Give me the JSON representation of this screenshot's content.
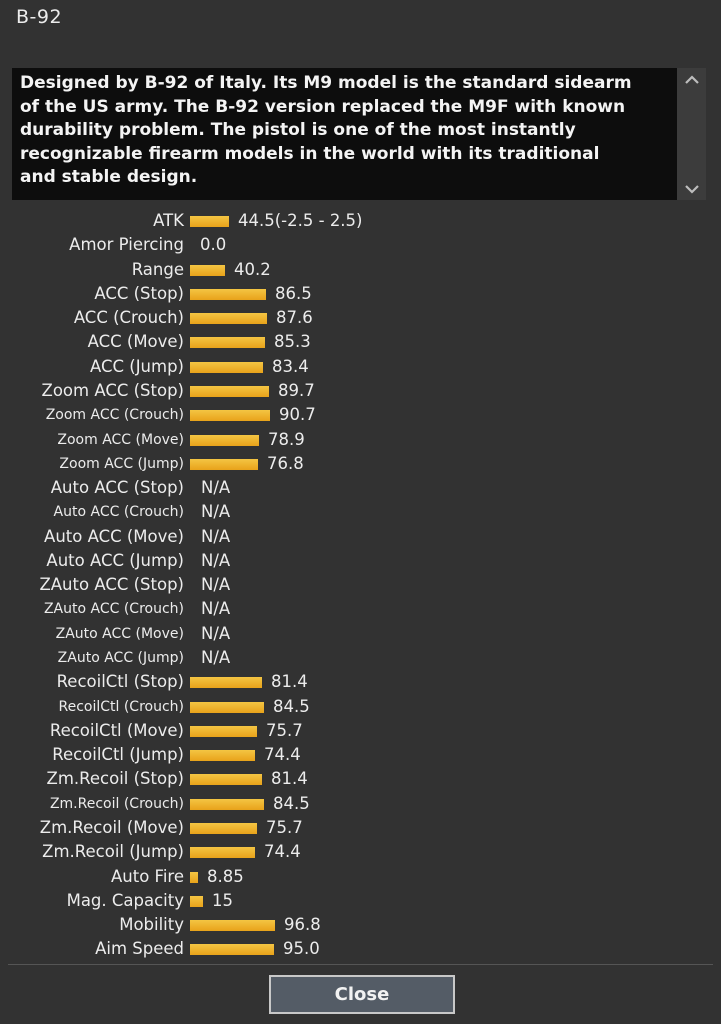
{
  "window": {
    "title": "B-92"
  },
  "description": {
    "lines": [
      "Designed by B-92 of Italy. Its M9 model is the standard sidearm",
      "of the US army. The B-92 version replaced the M9F with known",
      "durability problem. The pistol is one of the most instantly",
      "recognizable firearm models in the world with its traditional",
      "and stable design."
    ]
  },
  "scrollbar": {
    "up_icon": "chevron-up-icon",
    "down_icon": "chevron-down-icon"
  },
  "stats": [
    {
      "label": "ATK",
      "value": "44.5(-2.5 - 2.5)",
      "level": 44.5,
      "size": "big"
    },
    {
      "label": "Amor Piercing",
      "value": "0.0",
      "level": 0,
      "size": "big"
    },
    {
      "label": "Range",
      "value": "40.2",
      "level": 40.2,
      "size": "big"
    },
    {
      "label": "ACC (Stop)",
      "value": "86.5",
      "level": 86.5,
      "size": "big"
    },
    {
      "label": "ACC (Crouch)",
      "value": "87.6",
      "level": 87.6,
      "size": "big"
    },
    {
      "label": "ACC (Move)",
      "value": "85.3",
      "level": 85.3,
      "size": "big"
    },
    {
      "label": "ACC (Jump)",
      "value": "83.4",
      "level": 83.4,
      "size": "big"
    },
    {
      "label": "Zoom ACC (Stop)",
      "value": "89.7",
      "level": 89.7,
      "size": "big"
    },
    {
      "label": "Zoom ACC (Crouch)",
      "value": "90.7",
      "level": 90.7,
      "size": "small"
    },
    {
      "label": "Zoom ACC (Move)",
      "value": "78.9",
      "level": 78.9,
      "size": "small"
    },
    {
      "label": "Zoom ACC (Jump)",
      "value": "76.8",
      "level": 76.8,
      "size": "small"
    },
    {
      "label": "Auto ACC (Stop)",
      "value": "N/A",
      "level": null,
      "size": "big"
    },
    {
      "label": "Auto ACC (Crouch)",
      "value": "N/A",
      "level": null,
      "size": "small"
    },
    {
      "label": "Auto ACC (Move)",
      "value": "N/A",
      "level": null,
      "size": "big"
    },
    {
      "label": "Auto ACC (Jump)",
      "value": "N/A",
      "level": null,
      "size": "big"
    },
    {
      "label": "ZAuto ACC (Stop)",
      "value": "N/A",
      "level": null,
      "size": "big"
    },
    {
      "label": "ZAuto ACC (Crouch)",
      "value": "N/A",
      "level": null,
      "size": "small"
    },
    {
      "label": "ZAuto ACC (Move)",
      "value": "N/A",
      "level": null,
      "size": "small"
    },
    {
      "label": "ZAuto ACC (Jump)",
      "value": "N/A",
      "level": null,
      "size": "small"
    },
    {
      "label": "RecoilCtl (Stop)",
      "value": "81.4",
      "level": 81.4,
      "size": "big"
    },
    {
      "label": "RecoilCtl (Crouch)",
      "value": "84.5",
      "level": 84.5,
      "size": "small"
    },
    {
      "label": "RecoilCtl (Move)",
      "value": "75.7",
      "level": 75.7,
      "size": "big"
    },
    {
      "label": "RecoilCtl (Jump)",
      "value": "74.4",
      "level": 74.4,
      "size": "big"
    },
    {
      "label": "Zm.Recoil (Stop)",
      "value": "81.4",
      "level": 81.4,
      "size": "big"
    },
    {
      "label": "Zm.Recoil (Crouch)",
      "value": "84.5",
      "level": 84.5,
      "size": "small"
    },
    {
      "label": "Zm.Recoil (Move)",
      "value": "75.7",
      "level": 75.7,
      "size": "big"
    },
    {
      "label": "Zm.Recoil (Jump)",
      "value": "74.4",
      "level": 74.4,
      "size": "big"
    },
    {
      "label": "Auto Fire",
      "value": "8.85",
      "level": 8.85,
      "size": "big"
    },
    {
      "label": "Mag. Capacity",
      "value": "15",
      "level": 15,
      "size": "big"
    },
    {
      "label": "Mobility",
      "value": "96.8",
      "level": 96.8,
      "size": "big"
    },
    {
      "label": "Aim Speed",
      "value": "95.0",
      "level": 95.0,
      "size": "big"
    }
  ],
  "colors": {
    "bar_top": "#f4c543",
    "bar_bottom": "#e8a21a",
    "background": "#323232",
    "desc_background": "#0d0d0d"
  },
  "footer": {
    "close_label": "Close"
  }
}
